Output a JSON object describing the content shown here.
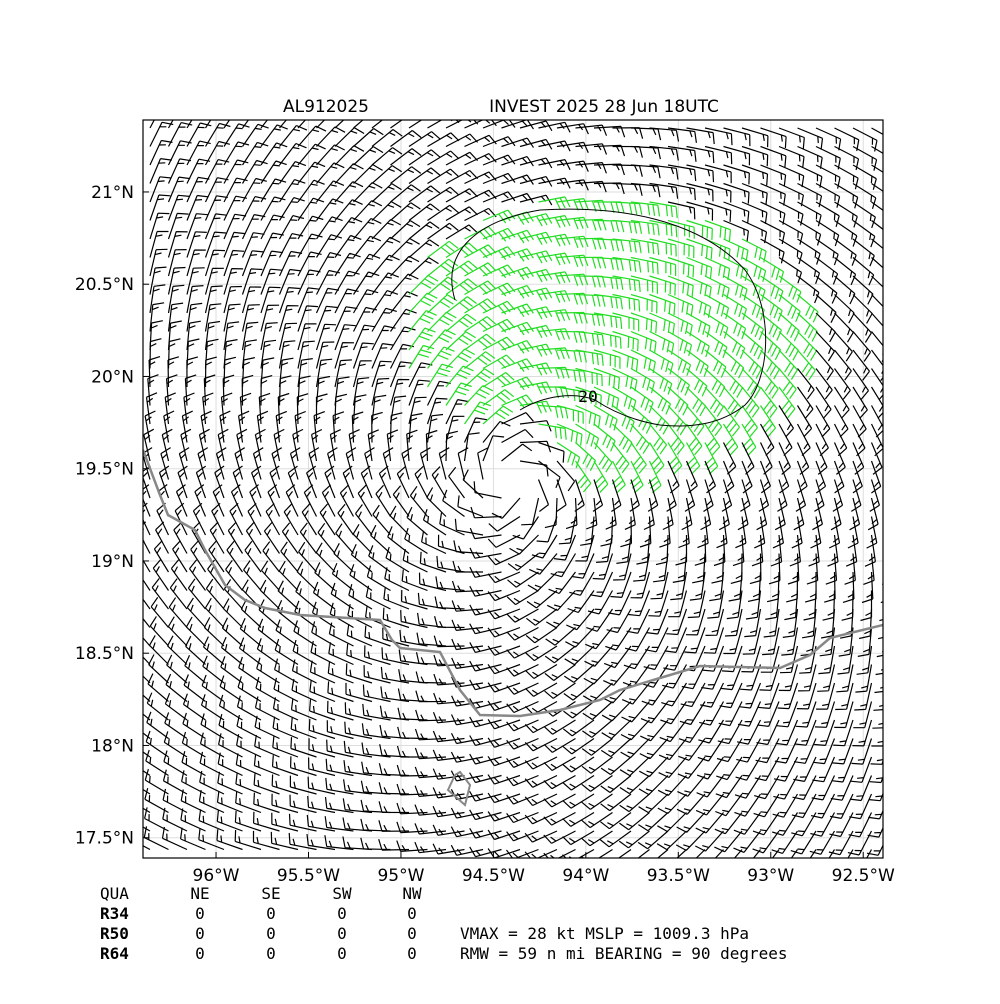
{
  "map": {
    "title_left": "AL912025",
    "title_right": "INVEST 2025 28 Jun 18UTC",
    "lonlim": [
      -96.395,
      -92.393
    ],
    "latlim": [
      17.39,
      21.39
    ],
    "xticks": [
      {
        "value": -96,
        "label": "96°W"
      },
      {
        "value": -95.5,
        "label": "95.5°W"
      },
      {
        "value": -95,
        "label": "95°W"
      },
      {
        "value": -94.5,
        "label": "94.5°W"
      },
      {
        "value": -94,
        "label": "94°W"
      },
      {
        "value": -93.5,
        "label": "93.5°W"
      },
      {
        "value": -93,
        "label": "93°W"
      },
      {
        "value": -92.5,
        "label": "92.5°W"
      }
    ],
    "yticks": [
      {
        "value": 17.5,
        "label": "17.5°N"
      },
      {
        "value": 18,
        "label": "18°N"
      },
      {
        "value": 18.5,
        "label": "18.5°N"
      },
      {
        "value": 19,
        "label": "19°N"
      },
      {
        "value": 19.5,
        "label": "19.5°N"
      },
      {
        "value": 20,
        "label": "20°N"
      },
      {
        "value": 20.5,
        "label": "20.5°N"
      },
      {
        "value": 21,
        "label": "21°N"
      }
    ],
    "contour_label": "20"
  },
  "table": {
    "header": [
      "QUA",
      "NE",
      "SE",
      "SW",
      "NW"
    ],
    "rows": [
      [
        "R34",
        0,
        0,
        0,
        0
      ],
      [
        "R50",
        0,
        0,
        0,
        0
      ],
      [
        "R64",
        0,
        0,
        0,
        0
      ]
    ]
  },
  "stats": [
    "VMAX =  28 kt MSLP = 1009.3 hPa",
    "RMW =  59 n mi BEARING =  90 degrees"
  ]
}
